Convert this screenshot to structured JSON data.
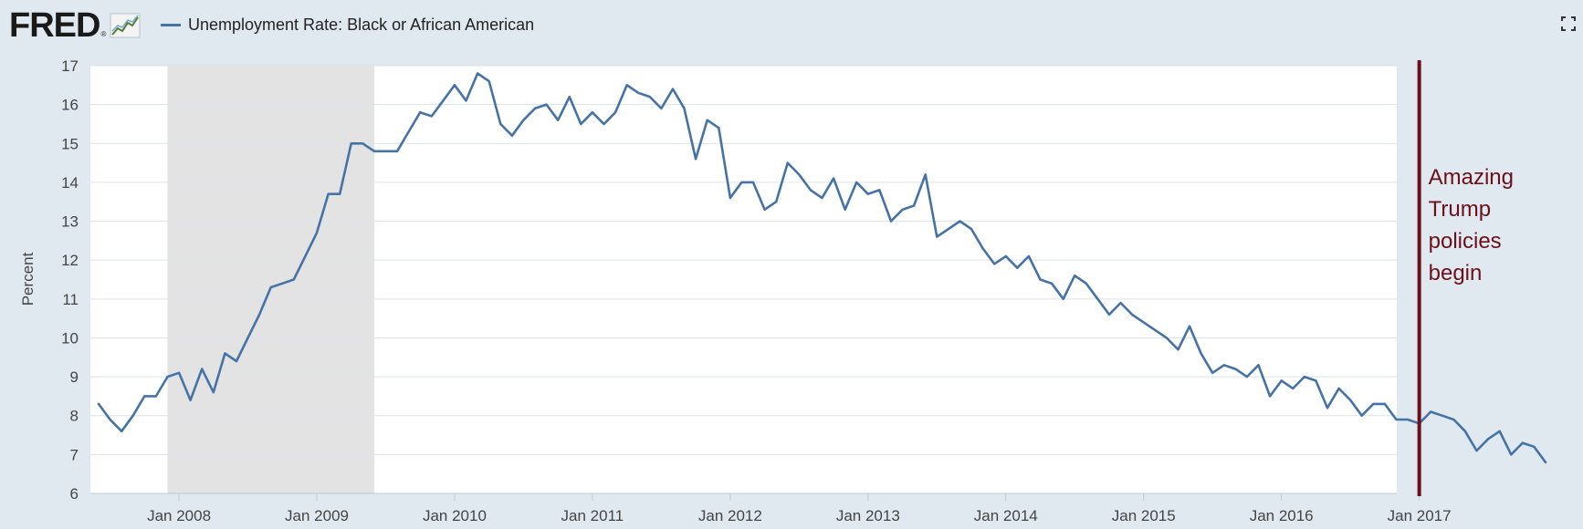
{
  "header": {
    "logo_text": "FRED",
    "logo_registered": "®",
    "legend_label": "Unemployment Rate: Black or African American"
  },
  "colors": {
    "background": "#e1e9f0",
    "plot_background": "#ffffff",
    "series": "#4572a7",
    "recession": "#e3e3e3",
    "annotation": "#6b0f1a",
    "grid": "#dde3ea"
  },
  "icons": {
    "fullscreen": "fullscreen-icon",
    "logo_graph": "line-graph-icon"
  },
  "chart_data": {
    "type": "line",
    "title": "",
    "xlabel": "",
    "ylabel": "Percent",
    "ylim": [
      6,
      17
    ],
    "yticks": [
      6,
      7,
      8,
      9,
      10,
      11,
      12,
      13,
      14,
      15,
      16,
      17
    ],
    "xlim": [
      "2007-06",
      "2017-12"
    ],
    "xticks": [
      {
        "label": "Jan 2008",
        "date": "2008-01"
      },
      {
        "label": "Jan 2009",
        "date": "2009-01"
      },
      {
        "label": "Jan 2010",
        "date": "2010-01"
      },
      {
        "label": "Jan 2011",
        "date": "2011-01"
      },
      {
        "label": "Jan 2012",
        "date": "2012-01"
      },
      {
        "label": "Jan 2013",
        "date": "2013-01"
      },
      {
        "label": "Jan 2014",
        "date": "2014-01"
      },
      {
        "label": "Jan 2015",
        "date": "2015-01"
      },
      {
        "label": "Jan 2016",
        "date": "2016-01"
      },
      {
        "label": "Jan 2017",
        "date": "2017-01"
      }
    ],
    "grid": true,
    "recession": {
      "start": "2007-12",
      "end": "2009-06"
    },
    "annotation": {
      "date": "2017-01",
      "lines": [
        "Amazing",
        "Trump",
        "policies",
        "begin"
      ]
    },
    "series": [
      {
        "name": "Unemployment Rate: Black or African American",
        "start": "2007-06",
        "values": [
          8.3,
          7.9,
          7.6,
          8.0,
          8.5,
          8.5,
          9.0,
          9.1,
          8.4,
          9.2,
          8.6,
          9.6,
          9.4,
          10.0,
          10.6,
          11.3,
          11.4,
          11.5,
          12.1,
          12.7,
          13.7,
          13.7,
          15.0,
          15.0,
          14.8,
          14.8,
          14.8,
          15.3,
          15.8,
          15.7,
          16.1,
          16.5,
          16.1,
          16.8,
          16.6,
          15.5,
          15.2,
          15.6,
          15.9,
          16.0,
          15.6,
          16.2,
          15.5,
          15.8,
          15.5,
          15.8,
          16.5,
          16.3,
          16.2,
          15.9,
          16.4,
          15.9,
          14.6,
          15.6,
          15.4,
          13.6,
          14.0,
          14.0,
          13.3,
          13.5,
          14.5,
          14.2,
          13.8,
          13.6,
          14.1,
          13.3,
          14.0,
          13.7,
          13.8,
          13.0,
          13.3,
          13.4,
          14.2,
          12.6,
          12.8,
          13.0,
          12.8,
          12.3,
          11.9,
          12.1,
          11.8,
          12.1,
          11.5,
          11.4,
          11.0,
          11.6,
          11.4,
          11.0,
          10.6,
          10.9,
          10.6,
          10.4,
          10.2,
          10.0,
          9.7,
          10.3,
          9.6,
          9.1,
          9.3,
          9.2,
          9.0,
          9.3,
          8.5,
          8.9,
          8.7,
          9.0,
          8.9,
          8.2,
          8.7,
          8.4,
          8.0,
          8.3,
          8.3,
          7.9,
          7.9,
          7.8,
          8.1,
          8.0,
          7.9,
          7.6,
          7.1,
          7.4,
          7.6,
          7.0,
          7.3,
          7.2,
          6.8
        ]
      }
    ]
  }
}
